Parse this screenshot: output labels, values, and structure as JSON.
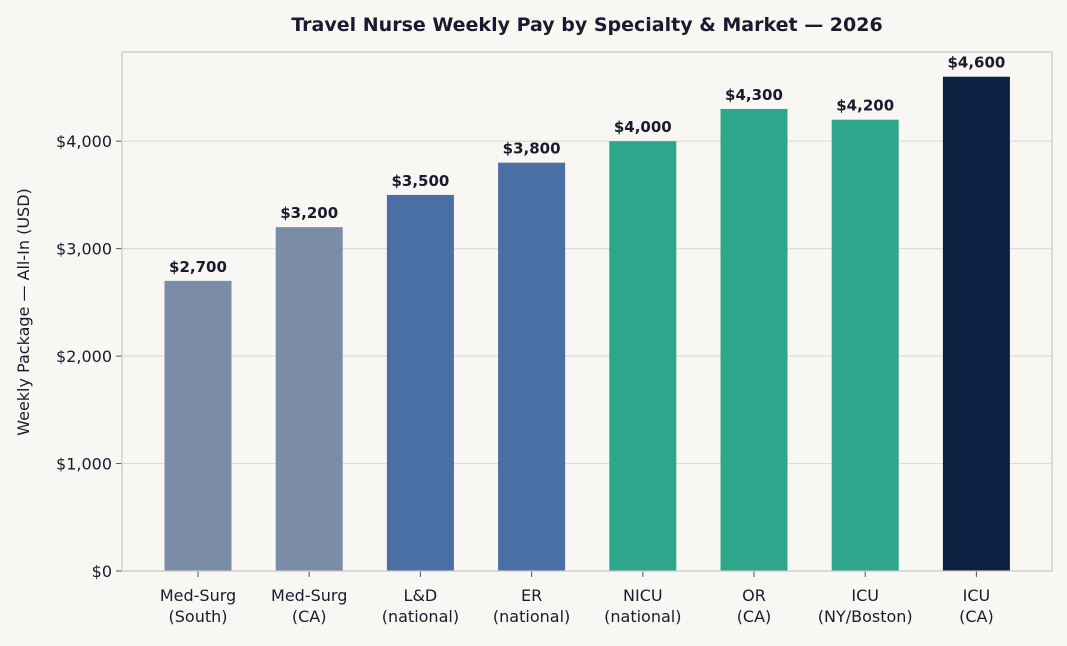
{
  "chart_data": {
    "type": "bar",
    "title": "Travel Nurse Weekly Pay by Specialty & Market — 2026",
    "xlabel": "",
    "ylabel": "Weekly Package — All-In (USD)",
    "ylim": [
      0,
      4830
    ],
    "yticks": [
      0,
      1000,
      2000,
      3000,
      4000
    ],
    "ytick_labels": [
      "$0",
      "$1,000",
      "$2,000",
      "$3,000",
      "$4,000"
    ],
    "grid": true,
    "categories": [
      [
        "Med-Surg",
        "(South)"
      ],
      [
        "Med-Surg",
        "(CA)"
      ],
      [
        "L&D",
        "(national)"
      ],
      [
        "ER",
        "(national)"
      ],
      [
        "NICU",
        "(national)"
      ],
      [
        "OR",
        "(CA)"
      ],
      [
        "ICU",
        "(NY/Boston)"
      ],
      [
        "ICU",
        "(CA)"
      ]
    ],
    "values": [
      2700,
      3200,
      3500,
      3800,
      4000,
      4300,
      4200,
      4600
    ],
    "value_labels": [
      "$2,700",
      "$3,200",
      "$3,500",
      "$3,800",
      "$4,000",
      "$4,300",
      "$4,200",
      "$4,600"
    ],
    "colors": [
      "#7a8ca6",
      "#7a8ca6",
      "#4a6fa5",
      "#4a6fa5",
      "#2ea68c",
      "#2ea68c",
      "#2ea68c",
      "#0b2242"
    ]
  }
}
